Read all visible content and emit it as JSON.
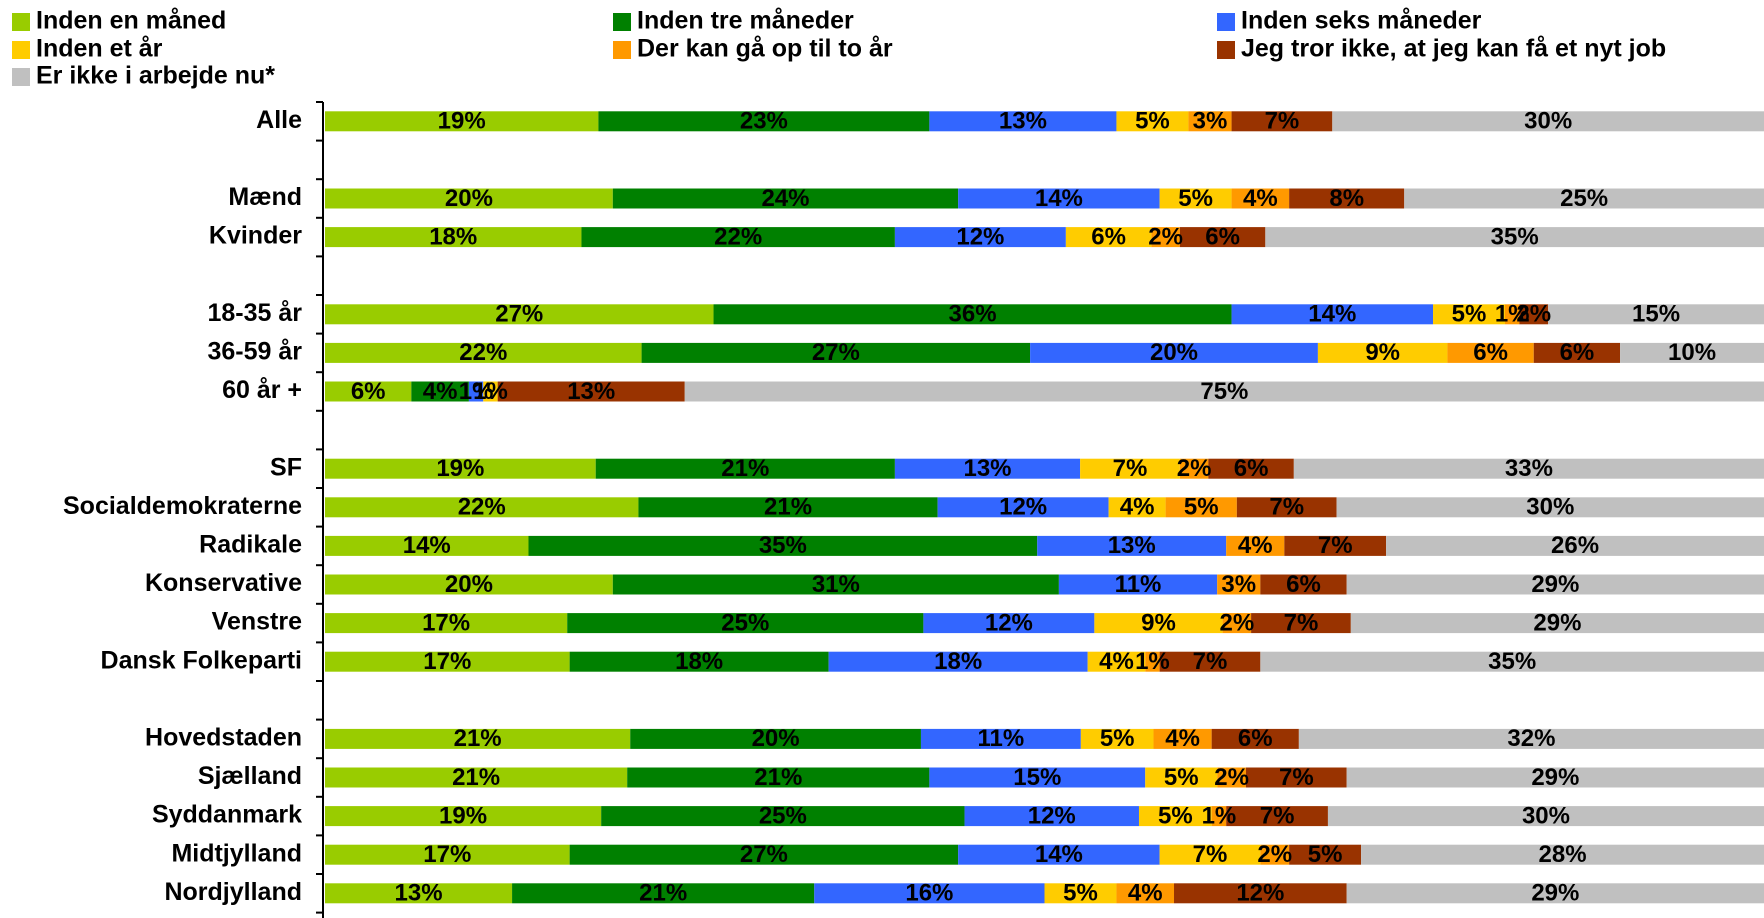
{
  "chart_data": {
    "type": "bar",
    "orientation": "horizontal",
    "stacked": true,
    "legend_position": "top",
    "categories": [
      "Alle",
      "Mænd",
      "Kvinder",
      "18-35 år",
      "36-59 år",
      "60 år +",
      "SF",
      "Socialdemokraterne",
      "Radikale",
      "Konservative",
      "Venstre",
      "Dansk Folkeparti",
      "Hovedstaden",
      "Sjælland",
      "Syddanmark",
      "Midtjylland",
      "Nordjylland"
    ],
    "series": [
      {
        "name": "Inden en måned",
        "color": "#99cc00",
        "values": [
          19,
          20,
          18,
          27,
          22,
          6,
          19,
          22,
          14,
          20,
          17,
          17,
          21,
          21,
          19,
          17,
          13
        ]
      },
      {
        "name": "Inden tre måneder",
        "color": "#008000",
        "values": [
          23,
          24,
          22,
          36,
          27,
          4,
          21,
          21,
          35,
          31,
          25,
          18,
          20,
          21,
          25,
          27,
          21
        ]
      },
      {
        "name": "Inden seks måneder",
        "color": "#3366ff",
        "values": [
          13,
          14,
          12,
          14,
          20,
          1,
          13,
          12,
          13,
          11,
          12,
          18,
          11,
          15,
          12,
          14,
          16
        ]
      },
      {
        "name": "Inden et år",
        "color": "#ffcc00",
        "values": [
          5,
          5,
          6,
          5,
          9,
          1,
          7,
          4,
          0,
          0,
          9,
          4,
          5,
          5,
          5,
          7,
          5
        ]
      },
      {
        "name": "Der kan gå op til to år",
        "color": "#ff9900",
        "values": [
          3,
          4,
          2,
          1,
          6,
          0,
          2,
          5,
          4,
          3,
          2,
          1,
          4,
          2,
          1,
          2,
          4
        ]
      },
      {
        "name": "Jeg tror ikke, at jeg kan få et nyt job",
        "color": "#993300",
        "values": [
          7,
          8,
          6,
          2,
          6,
          13,
          6,
          7,
          7,
          6,
          7,
          7,
          6,
          7,
          7,
          5,
          12
        ]
      },
      {
        "name": "Er ikke i arbejde nu*",
        "color": "#c0c0c0",
        "values": [
          30,
          25,
          35,
          15,
          10,
          75,
          33,
          30,
          26,
          29,
          29,
          35,
          32,
          29,
          30,
          28,
          29
        ]
      }
    ],
    "labels": [
      [
        "19%",
        "23%",
        "13%",
        "5%",
        "3%",
        "7%",
        "30%"
      ],
      [
        "20%",
        "24%",
        "14%",
        "5%",
        "4%",
        "8%",
        "25%"
      ],
      [
        "18%",
        "22%",
        "12%",
        "6%",
        "2%",
        "6%",
        "35%"
      ],
      [
        "27%",
        "36%",
        "14%",
        "5%",
        "1%",
        "2%",
        "15%"
      ],
      [
        "22%",
        "27%",
        "20%",
        "9%",
        "6%",
        "6%",
        "10%"
      ],
      [
        "6%",
        "4%",
        "1%",
        "1%",
        "",
        "13%",
        "75%"
      ],
      [
        "19%",
        "21%",
        "13%",
        "7%",
        "2%",
        "6%",
        "33%"
      ],
      [
        "22%",
        "21%",
        "12%",
        "4%",
        "5%",
        "7%",
        "30%"
      ],
      [
        "14%",
        "35%",
        "13%",
        "",
        "4%",
        "7%",
        "26%"
      ],
      [
        "20%",
        "31%",
        "11%",
        "",
        "3%",
        "6%",
        "29%"
      ],
      [
        "17%",
        "25%",
        "12%",
        "9%",
        "2%",
        "7%",
        "29%"
      ],
      [
        "17%",
        "18%",
        "18%",
        "4%",
        "1%",
        "7%",
        "35%"
      ],
      [
        "21%",
        "20%",
        "11%",
        "5%",
        "4%",
        "6%",
        "32%"
      ],
      [
        "21%",
        "21%",
        "15%",
        "5%",
        "2%",
        "7%",
        "29%"
      ],
      [
        "19%",
        "25%",
        "12%",
        "5%",
        "1%",
        "7%",
        "30%"
      ],
      [
        "17%",
        "27%",
        "14%",
        "7%",
        "2%",
        "5%",
        "28%"
      ],
      [
        "13%",
        "21%",
        "16%",
        "5%",
        "4%",
        "12%",
        "29%"
      ]
    ],
    "xlim": [
      0,
      100
    ],
    "grid": false
  }
}
